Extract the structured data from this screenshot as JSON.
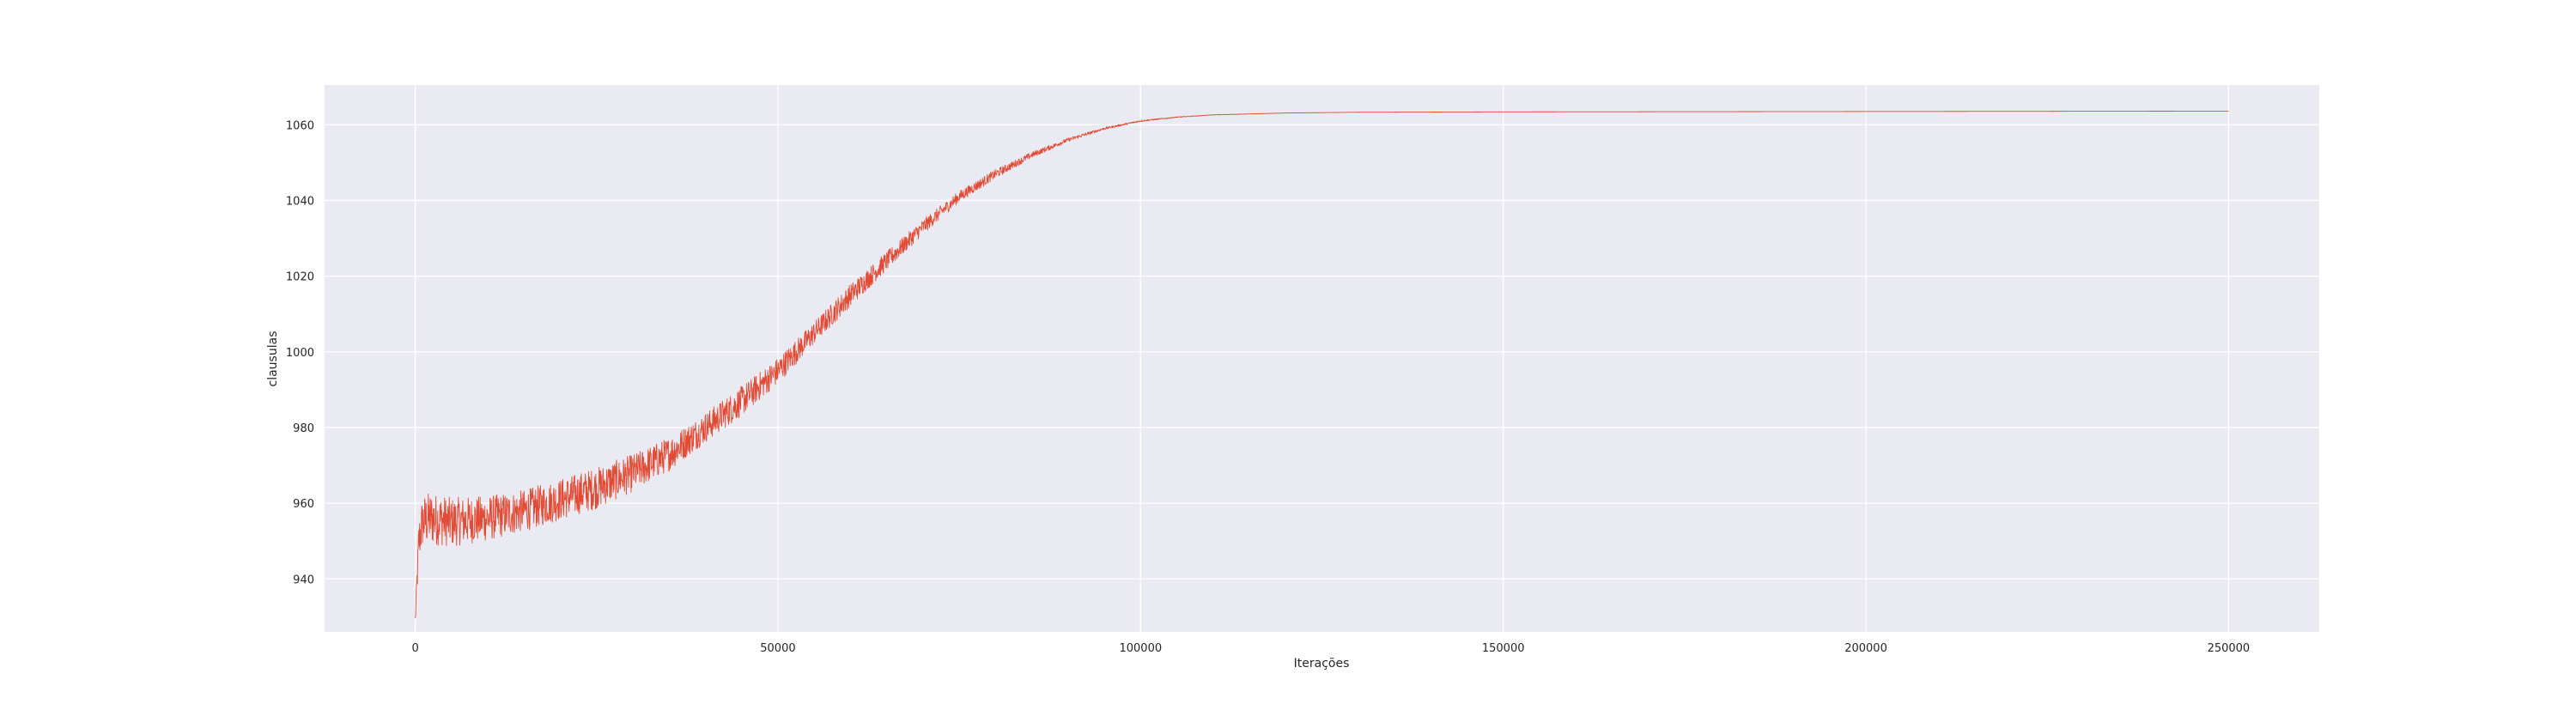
{
  "chart_data": {
    "type": "line",
    "title": "",
    "xlabel": "Iterações",
    "ylabel": "clausulas",
    "xlim": [
      -12500,
      262500
    ],
    "ylim": [
      926,
      1070.5
    ],
    "xticks": [
      0,
      50000,
      100000,
      150000,
      200000,
      250000
    ],
    "xtick_labels": [
      "0",
      "50000",
      "100000",
      "150000",
      "200000",
      "250000"
    ],
    "yticks": [
      940,
      960,
      980,
      1000,
      1020,
      1040,
      1060
    ],
    "ytick_labels": [
      "940",
      "960",
      "980",
      "1000",
      "1020",
      "1040",
      "1060"
    ],
    "grid": true,
    "background": "#eaeaf2",
    "grid_color": "#ffffff",
    "series": [
      {
        "color": "#e24a33",
        "x": [
          0,
          500,
          1000,
          2000,
          5000,
          10000,
          15000,
          20000,
          25000,
          30000,
          35000,
          40000,
          45000,
          50000,
          55000,
          60000,
          65000,
          70000,
          75000,
          80000,
          85000,
          90000,
          95000,
          100000,
          105000,
          110000,
          120000,
          130000,
          150000,
          200000,
          250000
        ],
        "values": [
          929,
          950,
          955,
          956,
          955,
          956,
          958,
          961,
          964,
          968,
          973,
          980,
          987,
          995,
          1005,
          1015,
          1024,
          1033,
          1041,
          1047,
          1052,
          1056,
          1059,
          1061,
          1062,
          1062.6,
          1063.1,
          1063.3,
          1063.4,
          1063.5,
          1063.6
        ],
        "noise": [
          2,
          6,
          7,
          7,
          6.5,
          6,
          5.5,
          5.5,
          5.5,
          5,
          4.5,
          4,
          4,
          3.5,
          3,
          3,
          2.5,
          2,
          1.5,
          1.2,
          0.8,
          0.5,
          0.3,
          0.2,
          0.1,
          0.05,
          0.02,
          0,
          0,
          0,
          0
        ]
      }
    ]
  }
}
